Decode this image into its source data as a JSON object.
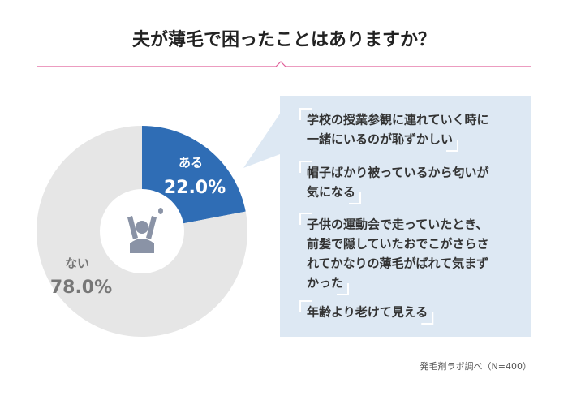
{
  "chart_data": {
    "type": "donut",
    "title": "夫が薄毛で困ったことはありますか？",
    "categories": [
      "ある",
      "ない"
    ],
    "values": [
      22.0,
      78.0
    ],
    "value_labels": [
      "22.0%",
      "78.0%"
    ],
    "colors": [
      "#2f6db5",
      "#e6e6e6"
    ],
    "quotes": [
      [
        "学校の授業参観に連れていく時に",
        "一緒にいるのが恥ずかしい"
      ],
      [
        "帽子ばかり被っているから匂いが",
        "気になる"
      ],
      [
        "子供の運動会で走っていたとき、",
        "前髪で隠していたおでこがさらさ",
        "れてかなりの薄毛がばれて気まず",
        "かった"
      ],
      [
        "年齢より老けて見える"
      ]
    ],
    "source": "発毛剤ラボ調べ（N=400）"
  }
}
